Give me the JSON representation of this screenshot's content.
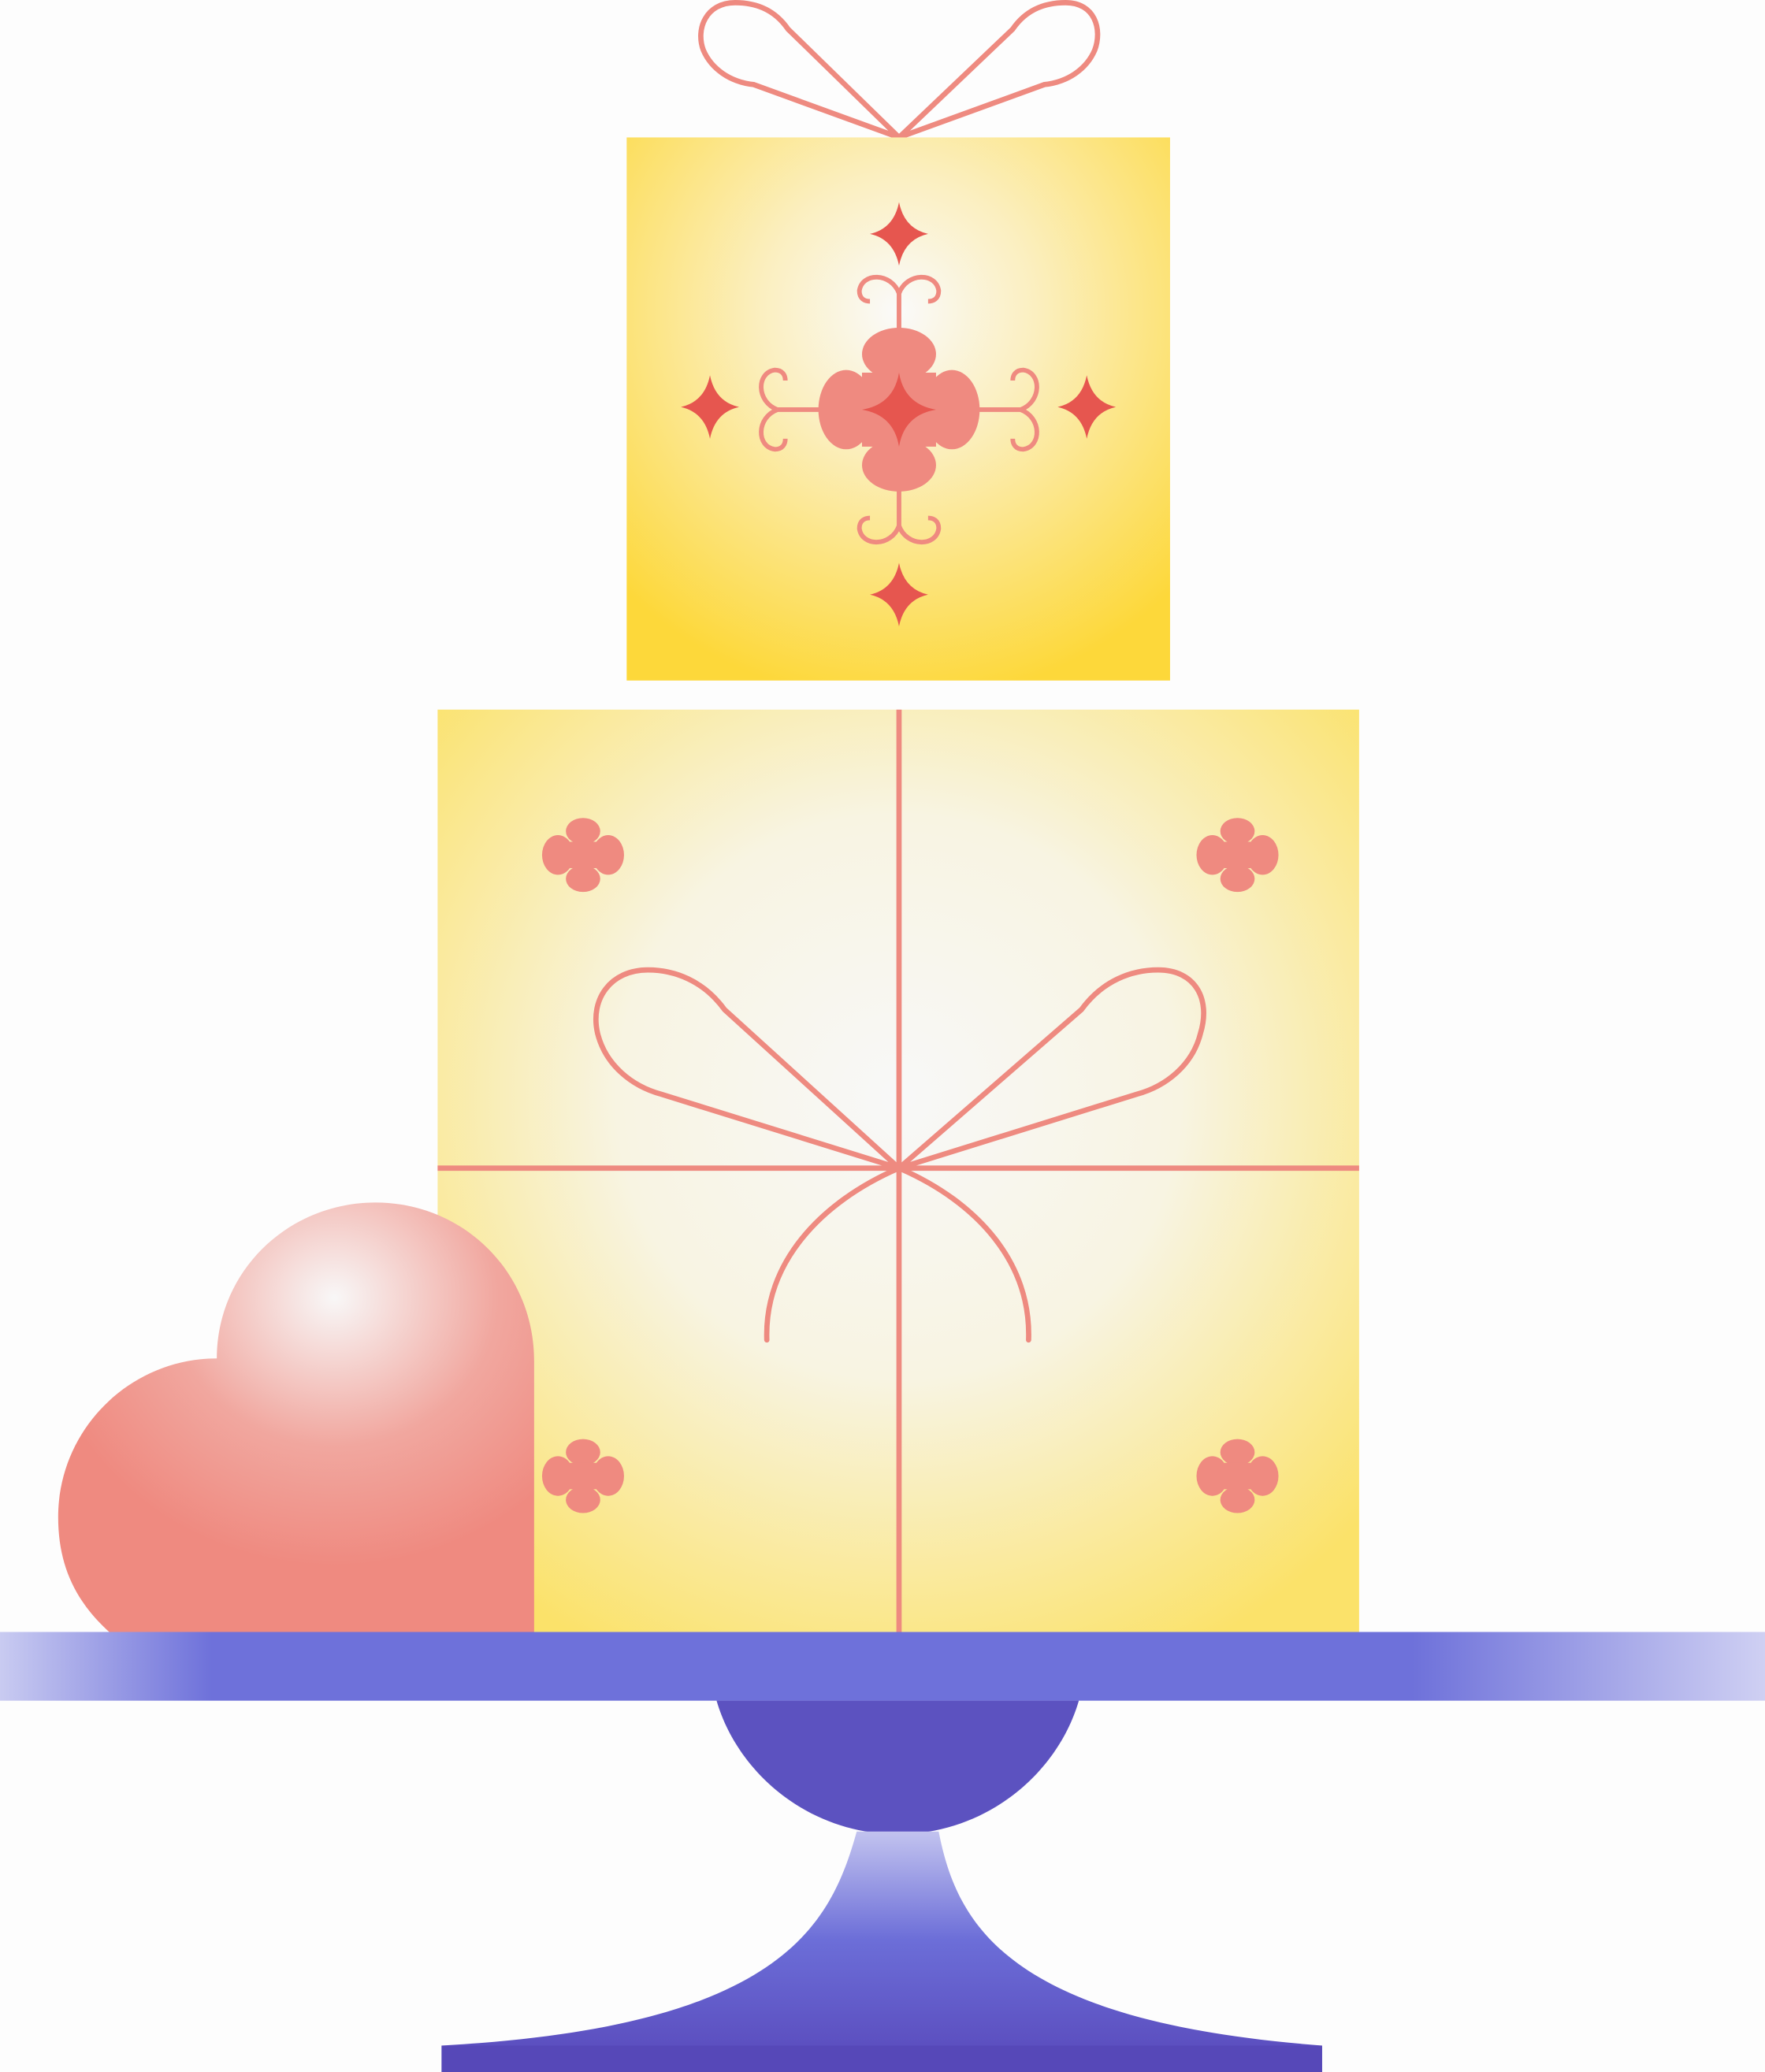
{
  "scene": {
    "subject": "gift-cake-on-stand",
    "colors": {
      "background": "#fdfdfd",
      "gift_yellow": "#fcd93a",
      "gift_center": "#f8f8f8",
      "ribbon": "#ee8a80",
      "ornament": "#e6564f",
      "heart": "#ef8a80",
      "stand_top": "#6e71da",
      "stand_bowl": "#5c52c0",
      "stand_foot": "#5648b8"
    },
    "icons": [
      "small-gift-box",
      "large-gift-box",
      "ribbon-bow",
      "clover-icon",
      "sparkle-star-icon",
      "heart-icon",
      "cake-stand"
    ]
  }
}
